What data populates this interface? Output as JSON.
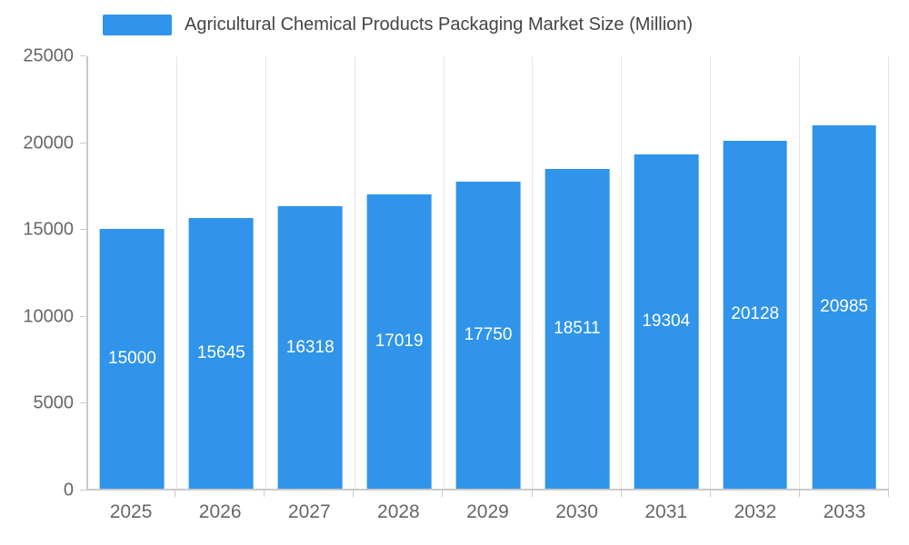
{
  "chart_data": {
    "type": "bar",
    "title": "Agricultural Chemical Products Packaging Market Size (Million)",
    "categories": [
      "2025",
      "2026",
      "2027",
      "2028",
      "2029",
      "2030",
      "2031",
      "2032",
      "2033"
    ],
    "values": [
      15000,
      15645,
      16318,
      17019,
      17750,
      18511,
      19304,
      20128,
      20985
    ],
    "xlabel": "",
    "ylabel": "",
    "ylim": [
      0,
      25000
    ],
    "yticks": [
      0,
      5000,
      10000,
      15000,
      20000,
      25000
    ],
    "grid": "vertical",
    "legend_position": "top-left",
    "bar_color": "#2f94ea",
    "bar_label_color": "#ffffff",
    "axis_text_color": "#666666",
    "title_text_color": "#444444"
  }
}
